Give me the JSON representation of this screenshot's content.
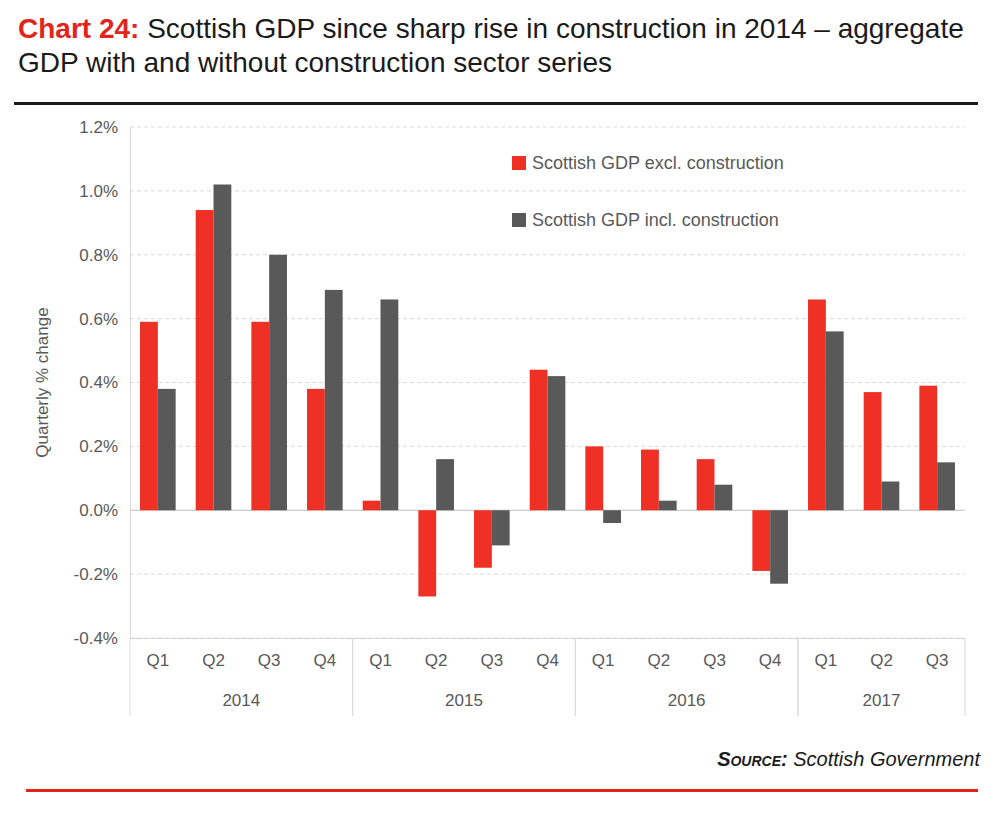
{
  "chart_data": {
    "type": "bar",
    "title_prefix": "Chart 24:",
    "title": "Scottish GDP since sharp rise in construction in 2014 – aggregate GDP with and without construction sector series",
    "y_label": "Quarterly % change",
    "source_label": "Source:",
    "source": "Scottish Government",
    "categories": [
      "Q1",
      "Q2",
      "Q3",
      "Q4",
      "Q1",
      "Q2",
      "Q3",
      "Q4",
      "Q1",
      "Q2",
      "Q3",
      "Q4",
      "Q1",
      "Q2",
      "Q3"
    ],
    "category_groups": [
      "2014",
      "2014",
      "2014",
      "2014",
      "2015",
      "2015",
      "2015",
      "2015",
      "2016",
      "2016",
      "2016",
      "2016",
      "2017",
      "2017",
      "2017"
    ],
    "series": [
      {
        "name": "Scottish GDP excl. construction",
        "color": "#ee3124",
        "values": [
          0.59,
          0.94,
          0.59,
          0.38,
          0.03,
          -0.27,
          -0.18,
          0.44,
          0.2,
          0.19,
          0.16,
          -0.19,
          0.66,
          0.37,
          0.39
        ]
      },
      {
        "name": "Scottish GDP incl. construction",
        "color": "#595959",
        "values": [
          0.38,
          1.02,
          0.8,
          0.69,
          0.66,
          0.16,
          -0.11,
          0.42,
          -0.04,
          0.03,
          0.08,
          -0.23,
          0.56,
          0.09,
          0.15
        ]
      }
    ],
    "ylim": [
      -0.4,
      1.2
    ],
    "yticks": [
      {
        "value": -0.4,
        "label": "-0.4%"
      },
      {
        "value": -0.2,
        "label": "-0.2%"
      },
      {
        "value": 0,
        "label": "0.0%"
      },
      {
        "value": 0.2,
        "label": "0.2%"
      },
      {
        "value": 0.4,
        "label": "0.4%"
      },
      {
        "value": 0.6,
        "label": "0.6%"
      },
      {
        "value": 0.8,
        "label": "0.8%"
      },
      {
        "value": 1.0,
        "label": "1.0%"
      },
      {
        "value": 1.2,
        "label": "1.2%"
      }
    ],
    "grid": true,
    "legend": "top-right"
  }
}
